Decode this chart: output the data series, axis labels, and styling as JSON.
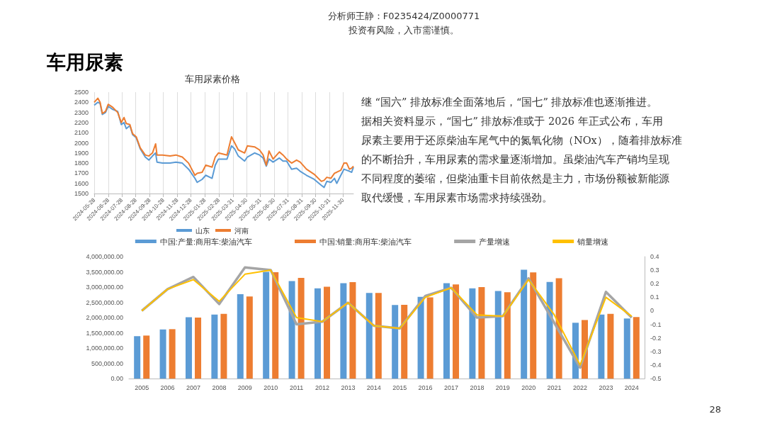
{
  "chart_data": [
    {
      "type": "other",
      "title": "车用尿素",
      "annotations": [
        "分析师王静：F0235424/Z0000771",
        "投资有风险，入市需谨慎。",
        "28"
      ]
    },
    {
      "type": "line",
      "title": "车用尿素价格",
      "marker": "none",
      "grid": "x",
      "legend": "bottom",
      "x": [
        "2024-05-28",
        "2024-06-05",
        "2024-06-10",
        "2024-06-15",
        "2024-06-22",
        "2024-06-28",
        "2024-07-08",
        "2024-07-19",
        "2024-07-27",
        "2024-08-02",
        "2024-08-07",
        "2024-08-15",
        "2024-08-21",
        "2024-08-29",
        "2024-09-07",
        "2024-09-18",
        "2024-09-26",
        "2024-10-04",
        "2024-10-11",
        "2024-10-14",
        "2024-10-26",
        "2024-11-12",
        "2024-11-25",
        "2024-12-09",
        "2024-12-23",
        "2025-01-06",
        "2025-01-11",
        "2025-01-22",
        "2025-01-30",
        "2025-02-13",
        "2025-02-20",
        "2025-02-27",
        "2025-03-18",
        "2025-03-28",
        "2025-04-04",
        "2025-04-12",
        "2025-04-26",
        "2025-05-02",
        "2025-05-18",
        "2025-05-29",
        "2025-06-06",
        "2025-06-13",
        "2025-06-19",
        "2025-06-28",
        "2025-07-12",
        "2025-07-20",
        "2025-07-28",
        "2025-08-08",
        "2025-08-19",
        "2025-08-27",
        "2025-09-10",
        "2025-09-27",
        "2025-10-13",
        "2025-10-19",
        "2025-10-25",
        "2025-11-03",
        "2025-11-11",
        "2025-11-16",
        "2025-11-25",
        "2025-12-02",
        "2025-12-08",
        "2025-12-14",
        "2025-12-19",
        "2025-12-23"
      ],
      "series": [
        {
          "name": "山东",
          "color": "#5b9bd5",
          "values": [
            2370,
            2400,
            2390,
            2280,
            2300,
            2360,
            2330,
            2310,
            2180,
            2200,
            2140,
            2170,
            2080,
            2050,
            1940,
            1860,
            1830,
            1870,
            1900,
            1810,
            1800,
            1800,
            1810,
            1800,
            1740,
            1650,
            1610,
            1640,
            1680,
            1650,
            1780,
            1840,
            1840,
            1970,
            1940,
            1870,
            1820,
            1860,
            1900,
            1880,
            1850,
            1770,
            1840,
            1810,
            1850,
            1820,
            1820,
            1740,
            1750,
            1720,
            1680,
            1640,
            1580,
            1560,
            1620,
            1610,
            1650,
            1600,
            1680,
            1740,
            1730,
            1720,
            1710,
            1760
          ]
        },
        {
          "name": "河南",
          "color": "#ed7d31",
          "values": [
            2400,
            2440,
            2400,
            2290,
            2310,
            2380,
            2350,
            2300,
            2200,
            2250,
            2190,
            2180,
            2090,
            2060,
            1950,
            1880,
            1870,
            1900,
            1990,
            1880,
            1880,
            1870,
            1880,
            1860,
            1800,
            1680,
            1700,
            1710,
            1780,
            1760,
            1860,
            1900,
            1880,
            2060,
            2000,
            1930,
            1900,
            1970,
            1960,
            1930,
            1880,
            1780,
            1920,
            1840,
            1910,
            1880,
            1840,
            1800,
            1830,
            1810,
            1740,
            1690,
            1620,
            1630,
            1660,
            1650,
            1700,
            1710,
            1730,
            1800,
            1800,
            1740,
            1750,
            1770
          ]
        }
      ],
      "xlim": [
        "2024-05-28",
        "2025-12-23"
      ],
      "xticks": [
        "2024-05-28",
        "2024-06-28",
        "2024-07-28",
        "2024-08-28",
        "2024-09-28",
        "2024-10-28",
        "2024-11-28",
        "2024-12-28",
        "2025-01-28",
        "2025-02-28",
        "2025-03-31",
        "2025-04-30",
        "2025-05-31",
        "2025-06-30",
        "2025-07-31",
        "2025-08-31",
        "2025-09-30",
        "2025-10-31",
        "2025-11-30"
      ],
      "ylim": [
        1500,
        2500
      ],
      "yticks": [
        1500,
        1600,
        1700,
        1800,
        1900,
        2000,
        2100,
        2200,
        2300,
        2400,
        2500
      ]
    },
    {
      "type": "other",
      "annotations": [
        "继 “国六” 排放标准全面落地后，“国七” 排放标准也逐渐推进。",
        "据相关资料显示，“国七” 排放标准或于 2026 年正式公布，车用",
        "尿素主要用于还原柴油车尾气中的氮氧化物（NOx），随着排放标准",
        "的不断抬升，车用尿素的需求量逐渐增加。虽柴油汽车产销均呈现",
        "不同程度的萎缩，但柴油重卡目前依然是主力，市场份额被新能源",
        "取代缓慢，车用尿素市场需求持续强劲。"
      ]
    },
    {
      "type": "bar",
      "grid": false,
      "legend": "top",
      "marker": "none",
      "categories": [
        "2005",
        "2006",
        "2007",
        "2008",
        "2009",
        "2010",
        "2011",
        "2012",
        "2013",
        "2014",
        "2015",
        "2016",
        "2017",
        "2018",
        "2019",
        "2020",
        "2021",
        "2022",
        "2023",
        "2024"
      ],
      "series": [
        {
          "name": "中国:产量:商用车:柴油汽车",
          "type": "bar",
          "color": "#5b9bd5",
          "values": [
            1390000,
            1610000,
            2010000,
            2100000,
            2770000,
            3500000,
            3200000,
            2960000,
            3130000,
            2810000,
            2410000,
            2680000,
            3130000,
            2960000,
            2870000,
            3570000,
            3170000,
            1830000,
            2100000,
            1970000
          ]
        },
        {
          "name": "中国:销量:商用车:柴油汽车",
          "type": "bar",
          "color": "#ed7d31",
          "values": [
            1410000,
            1620000,
            2000000,
            2120000,
            2690000,
            3490000,
            3300000,
            3010000,
            3160000,
            2810000,
            2420000,
            2660000,
            3090000,
            3000000,
            2830000,
            3480000,
            3290000,
            1920000,
            2120000,
            2020000
          ]
        },
        {
          "name": "产量增速",
          "type": "line",
          "axis": "y2",
          "color": "#a5a5a5",
          "values": [
            0,
            0.16,
            0.25,
            0.05,
            0.32,
            0.3,
            -0.1,
            -0.08,
            0.06,
            -0.11,
            -0.13,
            0.11,
            0.17,
            -0.05,
            -0.04,
            0.24,
            -0.09,
            -0.42,
            0.14,
            -0.05
          ]
        },
        {
          "name": "销量增速",
          "type": "line",
          "axis": "y2",
          "color": "#ffc000",
          "values": [
            0,
            0.16,
            0.23,
            0.07,
            0.27,
            0.3,
            -0.05,
            -0.08,
            0.06,
            -0.11,
            -0.13,
            0.1,
            0.17,
            -0.03,
            -0.04,
            0.23,
            -0.03,
            -0.4,
            0.1,
            -0.04
          ]
        }
      ],
      "ylim": [
        0,
        4000000
      ],
      "yticks": [
        {
          "value": 0,
          "label": "0.00"
        },
        {
          "value": 500000,
          "label": "500,000.00"
        },
        {
          "value": 1000000,
          "label": "1,000,000.00"
        },
        {
          "value": 1500000,
          "label": "1,500,000.00"
        },
        {
          "value": 2000000,
          "label": "2,000,000.00"
        },
        {
          "value": 2500000,
          "label": "2,500,000.00"
        },
        {
          "value": 3000000,
          "label": "3,000,000.00"
        },
        {
          "value": 3500000,
          "label": "3,500,000.00"
        },
        {
          "value": 4000000,
          "label": "4,000,000.00"
        }
      ],
      "y2lim": [
        -0.5,
        0.4
      ],
      "y2ticks": [
        -0.5,
        -0.4,
        -0.3,
        -0.2,
        -0.1,
        0,
        0.1,
        0.2,
        0.3,
        0.4
      ]
    }
  ]
}
